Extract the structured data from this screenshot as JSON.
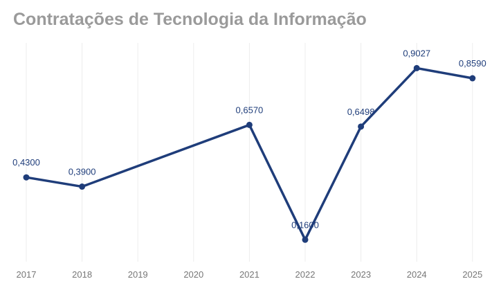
{
  "chart_data": {
    "type": "line",
    "title": "Contratações de Tecnologia da Informação",
    "xlabel": "",
    "ylabel": "",
    "categories": [
      "2017",
      "2018",
      "2019",
      "2020",
      "2021",
      "2022",
      "2023",
      "2024",
      "2025"
    ],
    "points": [
      {
        "x": "2017",
        "y": 0.43,
        "label": "0,4300"
      },
      {
        "x": "2018",
        "y": 0.39,
        "label": "0,3900"
      },
      {
        "x": "2021",
        "y": 0.657,
        "label": "0,6570"
      },
      {
        "x": "2022",
        "y": 0.16,
        "label": "0,1600"
      },
      {
        "x": "2023",
        "y": 0.6498,
        "label": "0,6498"
      },
      {
        "x": "2024",
        "y": 0.9027,
        "label": "0,9027"
      },
      {
        "x": "2025",
        "y": 0.859,
        "label": "0,8590"
      }
    ],
    "ylim": [
      0,
      1
    ],
    "grid": {
      "vertical": true,
      "horizontal": false
    },
    "colors": {
      "line": "#1f3d7a",
      "grid": "#ececec",
      "title": "#9a9a9a",
      "axis_text": "#777777"
    }
  }
}
